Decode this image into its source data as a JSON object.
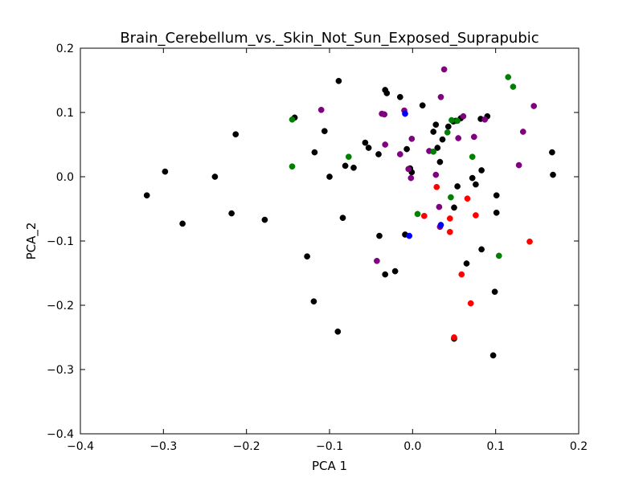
{
  "chart_data": {
    "type": "scatter",
    "title": "Brain_Cerebellum_vs._Skin_Not_Sun_Exposed_Suprapubic",
    "xlabel": "PCA 1",
    "ylabel": "PCA_2",
    "xlim": [
      -0.4,
      0.2
    ],
    "ylim": [
      -0.4,
      0.2
    ],
    "xticks": [
      -0.4,
      -0.3,
      -0.2,
      -0.1,
      0.0,
      0.1,
      0.2
    ],
    "yticks": [
      -0.4,
      -0.3,
      -0.2,
      -0.1,
      0.0,
      0.1,
      0.2
    ],
    "xtick_labels": [
      "−0.4",
      "−0.3",
      "−0.2",
      "−0.1",
      "0.0",
      "0.1",
      "0.2"
    ],
    "ytick_labels": [
      "−0.4",
      "−0.3",
      "−0.2",
      "−0.1",
      "0.0",
      "0.1",
      "0.2"
    ],
    "grid": false,
    "legend": "none",
    "series": [
      {
        "color": "#000000",
        "points": [
          [
            -0.32,
            -0.029
          ],
          [
            -0.298,
            0.008
          ],
          [
            -0.277,
            -0.073
          ],
          [
            -0.238,
            0.0
          ],
          [
            -0.218,
            -0.057
          ],
          [
            -0.213,
            0.066
          ],
          [
            -0.178,
            -0.067
          ],
          [
            -0.142,
            0.092
          ],
          [
            -0.127,
            -0.124
          ],
          [
            -0.119,
            -0.194
          ],
          [
            -0.118,
            0.038
          ],
          [
            -0.106,
            0.071
          ],
          [
            -0.1,
            0.0
          ],
          [
            -0.09,
            -0.241
          ],
          [
            -0.089,
            0.149
          ],
          [
            -0.084,
            -0.064
          ],
          [
            -0.081,
            0.017
          ],
          [
            -0.071,
            0.014
          ],
          [
            -0.057,
            0.053
          ],
          [
            -0.053,
            0.045
          ],
          [
            -0.041,
            0.035
          ],
          [
            -0.04,
            -0.092
          ],
          [
            -0.033,
            0.135
          ],
          [
            -0.031,
            0.13
          ],
          [
            -0.033,
            -0.152
          ],
          [
            -0.021,
            -0.147
          ],
          [
            -0.015,
            0.124
          ],
          [
            -0.009,
            -0.09
          ],
          [
            -0.007,
            0.043
          ],
          [
            -0.003,
            0.013
          ],
          [
            -0.001,
            0.007
          ],
          [
            0.012,
            0.111
          ],
          [
            0.025,
            0.07
          ],
          [
            0.028,
            0.081
          ],
          [
            0.03,
            0.045
          ],
          [
            0.033,
            0.023
          ],
          [
            0.036,
            0.058
          ],
          [
            0.043,
            0.078
          ],
          [
            0.049,
            0.086
          ],
          [
            0.05,
            -0.048
          ],
          [
            0.05,
            -0.252
          ],
          [
            0.052,
            0.087
          ],
          [
            0.054,
            -0.015
          ],
          [
            0.058,
            0.091
          ],
          [
            0.065,
            -0.135
          ],
          [
            0.072,
            -0.002
          ],
          [
            0.076,
            -0.012
          ],
          [
            0.082,
            0.09
          ],
          [
            0.083,
            0.01
          ],
          [
            0.083,
            -0.113
          ],
          [
            0.09,
            0.094
          ],
          [
            0.097,
            -0.278
          ],
          [
            0.099,
            -0.179
          ],
          [
            0.101,
            -0.056
          ],
          [
            0.101,
            -0.029
          ],
          [
            0.168,
            0.038
          ],
          [
            0.169,
            0.003
          ]
        ]
      },
      {
        "color": "#800080",
        "points": [
          [
            -0.11,
            0.104
          ],
          [
            -0.043,
            -0.131
          ],
          [
            -0.037,
            0.098
          ],
          [
            -0.034,
            0.097
          ],
          [
            -0.033,
            0.05
          ],
          [
            -0.015,
            0.035
          ],
          [
            -0.01,
            0.103
          ],
          [
            -0.005,
            0.012
          ],
          [
            -0.002,
            -0.002
          ],
          [
            -0.001,
            0.059
          ],
          [
            0.02,
            0.04
          ],
          [
            0.028,
            0.003
          ],
          [
            0.032,
            -0.047
          ],
          [
            0.033,
            -0.078
          ],
          [
            0.034,
            0.124
          ],
          [
            0.038,
            0.167
          ],
          [
            0.055,
            0.06
          ],
          [
            0.061,
            0.094
          ],
          [
            0.074,
            0.062
          ],
          [
            0.087,
            0.089
          ],
          [
            0.128,
            0.018
          ],
          [
            0.133,
            0.07
          ],
          [
            0.146,
            0.11
          ]
        ]
      },
      {
        "color": "#008000",
        "points": [
          [
            -0.145,
            0.089
          ],
          [
            -0.145,
            0.016
          ],
          [
            -0.077,
            0.031
          ],
          [
            0.006,
            -0.058
          ],
          [
            0.025,
            0.039
          ],
          [
            0.042,
            0.069
          ],
          [
            0.046,
            -0.032
          ],
          [
            0.047,
            0.088
          ],
          [
            0.054,
            0.087
          ],
          [
            0.072,
            0.031
          ],
          [
            0.104,
            -0.123
          ],
          [
            0.115,
            0.155
          ],
          [
            0.121,
            0.14
          ]
        ]
      },
      {
        "color": "#ff0000",
        "points": [
          [
            0.014,
            -0.061
          ],
          [
            0.029,
            -0.016
          ],
          [
            0.045,
            -0.065
          ],
          [
            0.045,
            -0.086
          ],
          [
            0.05,
            -0.25
          ],
          [
            0.059,
            -0.152
          ],
          [
            0.066,
            -0.034
          ],
          [
            0.07,
            -0.197
          ],
          [
            0.076,
            -0.06
          ],
          [
            0.141,
            -0.101
          ]
        ]
      },
      {
        "color": "#0000ff",
        "points": [
          [
            -0.009,
            0.098
          ],
          [
            -0.004,
            -0.092
          ],
          [
            0.034,
            -0.075
          ]
        ]
      }
    ]
  }
}
